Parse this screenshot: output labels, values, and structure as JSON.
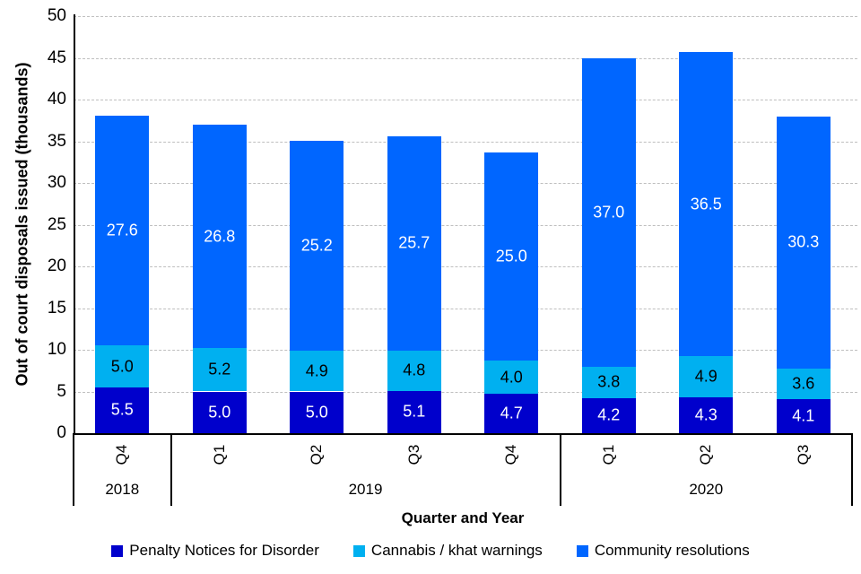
{
  "chart_data": {
    "type": "stacked-bar",
    "title": "",
    "ylabel": "Out of court disposals issued (thousands)",
    "xlabel": "Quarter and Year",
    "ylim": [
      0,
      50
    ],
    "yticks": [
      0,
      5,
      10,
      15,
      20,
      25,
      30,
      35,
      40,
      45,
      50
    ],
    "grid": {
      "horizontal": true,
      "style": "dashed",
      "color": "#bfbfbf"
    },
    "axis_color": "#000000",
    "legend_position": "bottom",
    "groups": [
      {
        "year": "2018",
        "quarters": [
          "Q4"
        ]
      },
      {
        "year": "2019",
        "quarters": [
          "Q1",
          "Q2",
          "Q3",
          "Q4"
        ]
      },
      {
        "year": "2020",
        "quarters": [
          "Q1",
          "Q2",
          "Q3"
        ]
      }
    ],
    "categories": [
      "Q4 2018",
      "Q1 2019",
      "Q2 2019",
      "Q3 2019",
      "Q4 2019",
      "Q1 2020",
      "Q2 2020",
      "Q3 2020"
    ],
    "series": [
      {
        "name": "Penalty Notices for Disorder",
        "color": "#0000cc",
        "label_color": "#ffffff",
        "values": [
          5.5,
          5.0,
          5.0,
          5.1,
          4.7,
          4.2,
          4.3,
          4.1
        ]
      },
      {
        "name": "Cannabis / khat warnings",
        "color": "#00b0f0",
        "label_color": "#000000",
        "values": [
          5.0,
          5.2,
          4.9,
          4.8,
          4.0,
          3.8,
          4.9,
          3.6
        ]
      },
      {
        "name": "Community resolutions",
        "color": "#0066ff",
        "label_color": "#ffffff",
        "values": [
          27.6,
          26.8,
          25.2,
          25.7,
          25.0,
          37.0,
          36.5,
          30.3
        ]
      }
    ]
  }
}
